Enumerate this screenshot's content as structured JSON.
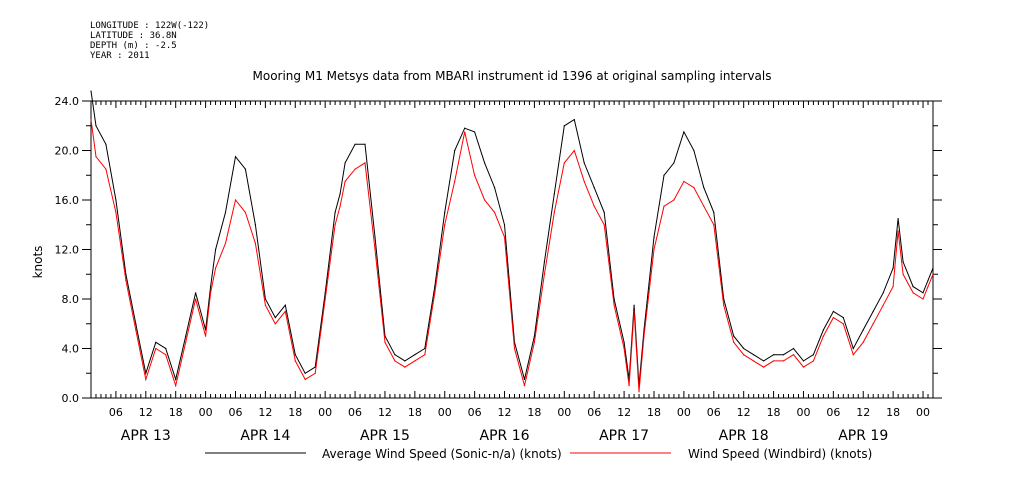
{
  "metadata": {
    "lines": [
      "LONGITUDE : 122W(-122)",
      "LATITUDE : 36.8N",
      "DEPTH (m) : -2.5",
      "YEAR : 2011"
    ]
  },
  "chart_data": {
    "type": "line",
    "title": "Mooring M1 Metsys data from MBARI instrument id 1396 at original sampling intervals",
    "xlabel": "",
    "ylabel": "knots",
    "ylim": [
      0,
      24
    ],
    "y_ticks": [
      "0.0",
      "4.0",
      "8.0",
      "12.0",
      "16.0",
      "20.0",
      "24.0"
    ],
    "x_hour_ticks": [
      {
        "t": "2011-04-13T06:00",
        "label": "06"
      },
      {
        "t": "2011-04-13T12:00",
        "label": "12"
      },
      {
        "t": "2011-04-13T18:00",
        "label": "18"
      },
      {
        "t": "2011-04-14T00:00",
        "label": "00"
      },
      {
        "t": "2011-04-14T06:00",
        "label": "06"
      },
      {
        "t": "2011-04-14T12:00",
        "label": "12"
      },
      {
        "t": "2011-04-14T18:00",
        "label": "18"
      },
      {
        "t": "2011-04-15T00:00",
        "label": "00"
      },
      {
        "t": "2011-04-15T06:00",
        "label": "06"
      },
      {
        "t": "2011-04-15T12:00",
        "label": "12"
      },
      {
        "t": "2011-04-15T18:00",
        "label": "18"
      },
      {
        "t": "2011-04-16T00:00",
        "label": "00"
      },
      {
        "t": "2011-04-16T06:00",
        "label": "06"
      },
      {
        "t": "2011-04-16T12:00",
        "label": "12"
      },
      {
        "t": "2011-04-16T18:00",
        "label": "18"
      },
      {
        "t": "2011-04-17T00:00",
        "label": "00"
      },
      {
        "t": "2011-04-17T06:00",
        "label": "06"
      },
      {
        "t": "2011-04-17T12:00",
        "label": "12"
      },
      {
        "t": "2011-04-17T18:00",
        "label": "18"
      },
      {
        "t": "2011-04-18T00:00",
        "label": "00"
      },
      {
        "t": "2011-04-18T06:00",
        "label": "06"
      },
      {
        "t": "2011-04-18T12:00",
        "label": "12"
      },
      {
        "t": "2011-04-18T18:00",
        "label": "18"
      },
      {
        "t": "2011-04-19T00:00",
        "label": "00"
      },
      {
        "t": "2011-04-19T06:00",
        "label": "06"
      },
      {
        "t": "2011-04-19T12:00",
        "label": "12"
      },
      {
        "t": "2011-04-19T18:00",
        "label": "18"
      },
      {
        "t": "2011-04-20T00:00",
        "label": "00"
      }
    ],
    "x_day_labels": [
      {
        "t": "2011-04-13T12:00",
        "label": "APR 13"
      },
      {
        "t": "2011-04-14T12:00",
        "label": "APR 14"
      },
      {
        "t": "2011-04-15T12:00",
        "label": "APR 15"
      },
      {
        "t": "2011-04-16T12:00",
        "label": "APR 16"
      },
      {
        "t": "2011-04-17T12:00",
        "label": "APR 17"
      },
      {
        "t": "2011-04-18T12:00",
        "label": "APR 18"
      },
      {
        "t": "2011-04-19T12:00",
        "label": "APR 19"
      }
    ],
    "xlim": [
      "2011-04-13T01:00",
      "2011-04-20T02:00"
    ],
    "grid": false,
    "legend": "bottom",
    "series": [
      {
        "name": "Average Wind Speed (Sonic-n/a) (knots)",
        "color": "#000000",
        "x": [
          "2011-04-13T01:00",
          "2011-04-13T02:00",
          "2011-04-13T04:00",
          "2011-04-13T06:00",
          "2011-04-13T08:00",
          "2011-04-13T10:00",
          "2011-04-13T12:00",
          "2011-04-13T14:00",
          "2011-04-13T16:00",
          "2011-04-13T18:00",
          "2011-04-13T20:00",
          "2011-04-13T22:00",
          "2011-04-14T00:00",
          "2011-04-14T01:00",
          "2011-04-14T02:00",
          "2011-04-14T04:00",
          "2011-04-14T06:00",
          "2011-04-14T08:00",
          "2011-04-14T10:00",
          "2011-04-14T12:00",
          "2011-04-14T14:00",
          "2011-04-14T16:00",
          "2011-04-14T18:00",
          "2011-04-14T20:00",
          "2011-04-14T22:00",
          "2011-04-15T00:00",
          "2011-04-15T02:00",
          "2011-04-15T03:00",
          "2011-04-15T04:00",
          "2011-04-15T06:00",
          "2011-04-15T08:00",
          "2011-04-15T10:00",
          "2011-04-15T12:00",
          "2011-04-15T14:00",
          "2011-04-15T16:00",
          "2011-04-15T18:00",
          "2011-04-15T20:00",
          "2011-04-15T22:00",
          "2011-04-16T00:00",
          "2011-04-16T02:00",
          "2011-04-16T04:00",
          "2011-04-16T06:00",
          "2011-04-16T08:00",
          "2011-04-16T10:00",
          "2011-04-16T12:00",
          "2011-04-16T14:00",
          "2011-04-16T16:00",
          "2011-04-16T18:00",
          "2011-04-16T20:00",
          "2011-04-16T22:00",
          "2011-04-17T00:00",
          "2011-04-17T02:00",
          "2011-04-17T04:00",
          "2011-04-17T06:00",
          "2011-04-17T08:00",
          "2011-04-17T10:00",
          "2011-04-17T12:00",
          "2011-04-17T13:00",
          "2011-04-17T14:00",
          "2011-04-17T15:00",
          "2011-04-17T16:00",
          "2011-04-17T18:00",
          "2011-04-17T20:00",
          "2011-04-17T22:00",
          "2011-04-18T00:00",
          "2011-04-18T02:00",
          "2011-04-18T04:00",
          "2011-04-18T06:00",
          "2011-04-18T08:00",
          "2011-04-18T10:00",
          "2011-04-18T12:00",
          "2011-04-18T14:00",
          "2011-04-18T16:00",
          "2011-04-18T18:00",
          "2011-04-18T20:00",
          "2011-04-18T22:00",
          "2011-04-19T00:00",
          "2011-04-19T02:00",
          "2011-04-19T04:00",
          "2011-04-19T06:00",
          "2011-04-19T08:00",
          "2011-04-19T10:00",
          "2011-04-19T12:00",
          "2011-04-19T14:00",
          "2011-04-19T16:00",
          "2011-04-19T18:00",
          "2011-04-19T19:00",
          "2011-04-19T20:00",
          "2011-04-19T22:00",
          "2011-04-20T00:00",
          "2011-04-20T01:00",
          "2011-04-20T02:00"
        ],
        "values": [
          24.8,
          22.0,
          20.5,
          16.0,
          10.0,
          6.0,
          2.0,
          4.5,
          4.0,
          1.5,
          5.0,
          8.5,
          5.5,
          9.0,
          12.0,
          15.0,
          19.5,
          18.5,
          14.0,
          8.0,
          6.5,
          7.5,
          3.5,
          2.0,
          2.5,
          8.5,
          15.0,
          16.5,
          19.0,
          20.5,
          20.5,
          13.0,
          5.0,
          3.5,
          3.0,
          3.5,
          4.0,
          9.0,
          15.0,
          20.0,
          21.8,
          21.5,
          19.0,
          17.0,
          14.0,
          4.5,
          1.5,
          5.0,
          11.0,
          16.5,
          22.0,
          22.5,
          19.0,
          17.0,
          15.0,
          8.0,
          4.5,
          1.5,
          7.5,
          1.0,
          5.5,
          13.0,
          18.0,
          19.0,
          21.5,
          20.0,
          17.0,
          15.0,
          8.0,
          5.0,
          4.0,
          3.5,
          3.0,
          3.5,
          3.5,
          4.0,
          3.0,
          3.5,
          5.5,
          7.0,
          6.5,
          4.0,
          5.5,
          7.0,
          8.5,
          10.5,
          14.5,
          11.0,
          9.0,
          8.5,
          9.5,
          10.5
        ]
      },
      {
        "name": "Wind Speed (Windbird) (knots)",
        "color": "#ff0000",
        "x": [
          "2011-04-13T01:00",
          "2011-04-13T02:00",
          "2011-04-13T04:00",
          "2011-04-13T06:00",
          "2011-04-13T08:00",
          "2011-04-13T10:00",
          "2011-04-13T12:00",
          "2011-04-13T14:00",
          "2011-04-13T16:00",
          "2011-04-13T18:00",
          "2011-04-13T20:00",
          "2011-04-13T22:00",
          "2011-04-14T00:00",
          "2011-04-14T01:00",
          "2011-04-14T02:00",
          "2011-04-14T04:00",
          "2011-04-14T06:00",
          "2011-04-14T08:00",
          "2011-04-14T10:00",
          "2011-04-14T12:00",
          "2011-04-14T14:00",
          "2011-04-14T16:00",
          "2011-04-14T18:00",
          "2011-04-14T20:00",
          "2011-04-14T22:00",
          "2011-04-15T00:00",
          "2011-04-15T02:00",
          "2011-04-15T03:00",
          "2011-04-15T04:00",
          "2011-04-15T06:00",
          "2011-04-15T08:00",
          "2011-04-15T10:00",
          "2011-04-15T12:00",
          "2011-04-15T14:00",
          "2011-04-15T16:00",
          "2011-04-15T18:00",
          "2011-04-15T20:00",
          "2011-04-15T22:00",
          "2011-04-16T00:00",
          "2011-04-16T02:00",
          "2011-04-16T04:00",
          "2011-04-16T06:00",
          "2011-04-16T08:00",
          "2011-04-16T10:00",
          "2011-04-16T12:00",
          "2011-04-16T14:00",
          "2011-04-16T16:00",
          "2011-04-16T18:00",
          "2011-04-16T20:00",
          "2011-04-16T22:00",
          "2011-04-17T00:00",
          "2011-04-17T02:00",
          "2011-04-17T04:00",
          "2011-04-17T06:00",
          "2011-04-17T08:00",
          "2011-04-17T10:00",
          "2011-04-17T12:00",
          "2011-04-17T13:00",
          "2011-04-17T14:00",
          "2011-04-17T15:00",
          "2011-04-17T16:00",
          "2011-04-17T18:00",
          "2011-04-17T20:00",
          "2011-04-17T22:00",
          "2011-04-18T00:00",
          "2011-04-18T02:00",
          "2011-04-18T04:00",
          "2011-04-18T06:00",
          "2011-04-18T08:00",
          "2011-04-18T10:00",
          "2011-04-18T12:00",
          "2011-04-18T14:00",
          "2011-04-18T16:00",
          "2011-04-18T18:00",
          "2011-04-18T20:00",
          "2011-04-18T22:00",
          "2011-04-19T00:00",
          "2011-04-19T02:00",
          "2011-04-19T04:00",
          "2011-04-19T06:00",
          "2011-04-19T08:00",
          "2011-04-19T10:00",
          "2011-04-19T12:00",
          "2011-04-19T14:00",
          "2011-04-19T16:00",
          "2011-04-19T18:00",
          "2011-04-19T19:00",
          "2011-04-19T20:00",
          "2011-04-19T22:00",
          "2011-04-20T00:00",
          "2011-04-20T01:00",
          "2011-04-20T02:00"
        ],
        "values": [
          22.5,
          19.5,
          18.5,
          15.0,
          9.5,
          5.5,
          1.5,
          4.0,
          3.5,
          1.0,
          4.5,
          8.0,
          5.0,
          8.5,
          10.5,
          12.5,
          16.0,
          15.0,
          12.5,
          7.5,
          6.0,
          7.0,
          3.0,
          1.5,
          2.0,
          8.0,
          14.0,
          15.5,
          17.5,
          18.5,
          19.0,
          12.0,
          4.5,
          3.0,
          2.5,
          3.0,
          3.5,
          8.5,
          14.0,
          17.5,
          21.5,
          18.0,
          16.0,
          15.0,
          13.0,
          4.0,
          1.0,
          4.5,
          10.0,
          15.0,
          19.0,
          20.0,
          17.5,
          15.5,
          14.0,
          7.5,
          4.0,
          1.0,
          7.0,
          0.5,
          5.0,
          12.0,
          15.5,
          16.0,
          17.5,
          17.0,
          15.5,
          14.0,
          7.5,
          4.5,
          3.5,
          3.0,
          2.5,
          3.0,
          3.0,
          3.5,
          2.5,
          3.0,
          5.0,
          6.5,
          6.0,
          3.5,
          4.5,
          6.0,
          7.5,
          9.0,
          13.5,
          10.0,
          8.5,
          8.0,
          9.0,
          10.0
        ]
      }
    ]
  }
}
